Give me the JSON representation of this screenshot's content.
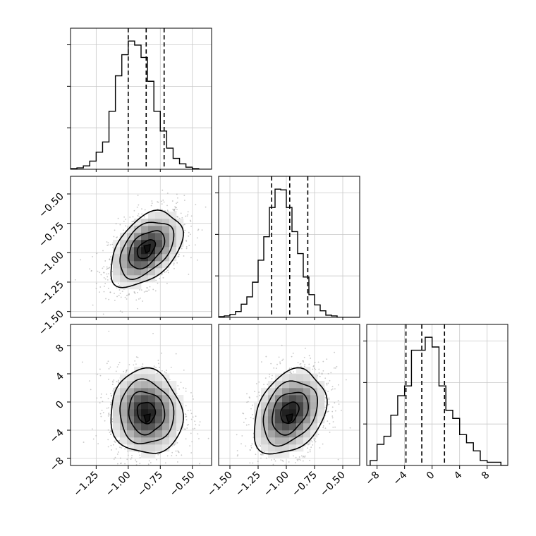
{
  "chart_data": [
    {
      "type": "histogram",
      "panel": "diag-1",
      "variable_index": 0,
      "xlim": [
        -1.45,
        -0.35
      ],
      "edges_start": -1.45,
      "bin_width": 0.05,
      "counts": [
        1,
        2,
        5,
        12,
        25,
        40,
        85,
        137,
        168,
        188,
        182,
        164,
        129,
        85,
        56,
        31,
        16,
        8,
        3,
        1,
        0,
        0
      ],
      "quantile_lines": [
        -1.0,
        -0.86,
        -0.72
      ],
      "grid": true
    },
    {
      "type": "histogram",
      "panel": "diag-2",
      "variable_index": 1,
      "xlim": [
        -1.6,
        -0.35
      ],
      "edges_start": -1.6,
      "bin_width": 0.05,
      "counts": [
        1,
        2,
        4,
        8,
        18,
        28,
        48,
        78,
        110,
        150,
        175,
        174,
        150,
        117,
        87,
        55,
        31,
        17,
        9,
        3,
        2,
        0,
        0,
        0,
        0
      ],
      "quantile_lines": [
        -1.13,
        -0.97,
        -0.81
      ],
      "grid": true
    },
    {
      "type": "histogram",
      "panel": "diag-3",
      "variable_index": 2,
      "xlim": [
        -9.5,
        11
      ],
      "edges_start": -9,
      "bin_width": 1,
      "counts": [
        3,
        13,
        18,
        31,
        43,
        49,
        71,
        71,
        79,
        73,
        49,
        34,
        29,
        19,
        14,
        9,
        3,
        2,
        2,
        0
      ],
      "quantile_lines": [
        -3.8,
        -1.5,
        1.8
      ],
      "grid": true
    },
    {
      "type": "scatter_contour",
      "panel": "pair-1-0",
      "x_var": 0,
      "y_var": 1,
      "x_center": -0.86,
      "y_center": -0.97,
      "x_sd": 0.14,
      "y_sd": 0.16,
      "correlation": 0.45,
      "density_peak": [
        -0.85,
        -0.96
      ],
      "contour_levels_sigma": [
        0.5,
        1.0,
        1.5,
        2.0
      ],
      "xlim": [
        -1.45,
        -0.35
      ],
      "ylim": [
        -1.55,
        -0.35
      ]
    },
    {
      "type": "scatter_contour",
      "panel": "pair-2-0",
      "x_var": 0,
      "y_var": 2,
      "x_center": -0.86,
      "y_center": -1.5,
      "x_sd": 0.14,
      "y_sd": 3.0,
      "correlation": -0.05,
      "density_peak": [
        -0.85,
        -2.2
      ],
      "contour_levels_sigma": [
        0.5,
        1.0,
        1.5,
        2.0
      ],
      "xlim": [
        -1.45,
        -0.35
      ],
      "ylim": [
        -9,
        11
      ]
    },
    {
      "type": "scatter_contour",
      "panel": "pair-2-1",
      "x_var": 1,
      "y_var": 2,
      "x_center": -0.97,
      "y_center": -1.5,
      "x_sd": 0.16,
      "y_sd": 3.0,
      "correlation": 0.3,
      "density_peak": [
        -0.97,
        -2.2
      ],
      "contour_levels_sigma": [
        0.5,
        1.0,
        1.5,
        2.0
      ],
      "xlim": [
        -1.6,
        -0.35
      ],
      "ylim": [
        -9,
        11
      ]
    }
  ],
  "axes": {
    "var0_ticks": [
      -1.25,
      -1.0,
      -0.75,
      -0.5
    ],
    "var0_tick_labels": [
      "−1.25",
      "−1.00",
      "−0.75",
      "−0.50"
    ],
    "var1_ticks": [
      -1.5,
      -1.25,
      -1.0,
      -0.75,
      -0.5
    ],
    "var1_tick_labels": [
      "−1.50",
      "−1.25",
      "−1.00",
      "−0.75",
      "−0.50"
    ],
    "var2_ticks": [
      -8,
      -4,
      0,
      4,
      8
    ],
    "var2_tick_labels": [
      "−8",
      "−4",
      "0",
      "4",
      "8"
    ]
  }
}
